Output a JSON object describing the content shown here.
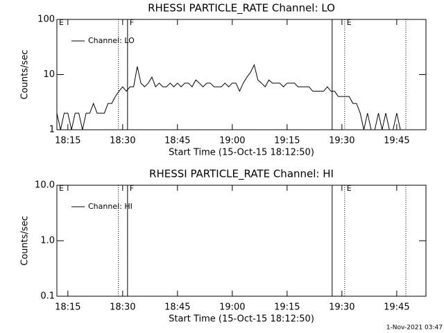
{
  "chart_data": [
    {
      "type": "line",
      "title": "RHESSI PARTICLE_RATE Channel: LO",
      "xlabel": "Start Time (15-Oct-15 18:12:50)",
      "ylabel": "Counts/sec",
      "log_y": true,
      "legend": "upper left",
      "xlim": [
        "18:12",
        "19:53"
      ],
      "xticks": [
        "18:15",
        "18:30",
        "18:45",
        "19:00",
        "19:15",
        "19:30",
        "19:45"
      ],
      "ylim": [
        1,
        100
      ],
      "yticks": [
        1,
        10,
        100
      ],
      "x": [
        "18:12",
        "18:13",
        "18:14",
        "18:15",
        "18:16",
        "18:17",
        "18:18",
        "18:19",
        "18:20",
        "18:21",
        "18:22",
        "18:23",
        "18:24",
        "18:25",
        "18:26",
        "18:27",
        "18:28",
        "18:29",
        "18:30",
        "18:31",
        "18:32",
        "18:33",
        "18:34",
        "18:35",
        "18:36",
        "18:37",
        "18:38",
        "18:39",
        "18:40",
        "18:41",
        "18:42",
        "18:43",
        "18:44",
        "18:45",
        "18:46",
        "18:47",
        "18:48",
        "18:49",
        "18:50",
        "18:51",
        "18:52",
        "18:53",
        "18:54",
        "18:55",
        "18:56",
        "18:57",
        "18:58",
        "18:59",
        "19:00",
        "19:01",
        "19:02",
        "19:03",
        "19:04",
        "19:05",
        "19:06",
        "19:07",
        "19:08",
        "19:09",
        "19:10",
        "19:11",
        "19:12",
        "19:13",
        "19:14",
        "19:15",
        "19:16",
        "19:17",
        "19:18",
        "19:19",
        "19:20",
        "19:21",
        "19:22",
        "19:23",
        "19:24",
        "19:25",
        "19:26",
        "19:27",
        "19:28",
        "19:29",
        "19:30",
        "19:31",
        "19:32",
        "19:33",
        "19:34",
        "19:35",
        "19:36",
        "19:37",
        "19:38",
        "19:39",
        "19:40",
        "19:41",
        "19:42",
        "19:43",
        "19:44",
        "19:45",
        "19:46",
        "19:47",
        "19:48",
        "19:49",
        "19:50"
      ],
      "series": [
        {
          "name": "Channel: LO",
          "color": "#000000",
          "values": [
            2,
            1,
            2,
            2,
            1,
            2,
            2,
            1,
            2,
            2,
            3,
            2,
            2,
            2,
            3,
            3,
            4,
            5,
            6,
            5,
            6,
            6,
            14,
            7,
            6,
            7,
            9,
            6,
            7,
            6,
            6,
            7,
            6,
            7,
            6,
            7,
            7,
            6,
            8,
            7,
            6,
            7,
            7,
            6,
            6,
            6,
            7,
            6,
            7,
            7,
            5,
            7,
            9,
            11,
            15,
            8,
            7,
            6,
            8,
            7,
            7,
            7,
            6,
            7,
            7,
            7,
            6,
            6,
            6,
            6,
            5,
            5,
            5,
            5,
            6,
            5,
            5,
            4,
            4,
            4,
            4,
            3,
            3,
            2,
            1,
            2,
            1,
            1,
            2,
            1,
            2,
            1,
            1,
            2,
            1,
            1,
            1,
            1,
            1
          ]
        }
      ],
      "vlines": [
        {
          "x": "18:28:50",
          "style": "dotted"
        },
        {
          "x": "18:31:20",
          "style": "solid"
        },
        {
          "x": "19:27:20",
          "style": "solid"
        },
        {
          "x": "19:30:45",
          "style": "dotted"
        },
        {
          "x": "19:47:30",
          "style": "dotted"
        }
      ],
      "annotations": [
        {
          "text": "E",
          "x": "18:12"
        },
        {
          "text": "F",
          "x": "18:31:20"
        },
        {
          "text": "E",
          "x": "19:30:45"
        }
      ]
    },
    {
      "type": "line",
      "title": "RHESSI PARTICLE_RATE Channel: HI",
      "xlabel": "Start Time (15-Oct-15 18:12:50)",
      "ylabel": "Counts/sec",
      "log_y": true,
      "legend": "upper left",
      "xlim": [
        "18:12",
        "19:53"
      ],
      "xticks": [
        "18:15",
        "18:30",
        "18:45",
        "19:00",
        "19:15",
        "19:30",
        "19:45"
      ],
      "ylim": [
        0.1,
        10
      ],
      "yticks": [
        0.1,
        {
          "value": 1,
          "label": "1.0"
        },
        {
          "value": 10,
          "label": "10.0"
        }
      ],
      "x": [],
      "series": [
        {
          "name": "Channel: HI",
          "color": "#000000",
          "values": []
        }
      ],
      "vlines": [
        {
          "x": "18:28:50",
          "style": "dotted"
        },
        {
          "x": "18:31:20",
          "style": "solid"
        },
        {
          "x": "19:27:20",
          "style": "solid"
        },
        {
          "x": "19:30:45",
          "style": "dotted"
        },
        {
          "x": "19:47:30",
          "style": "dotted"
        }
      ],
      "annotations": [
        {
          "text": "E",
          "x": "18:12"
        },
        {
          "text": "F",
          "x": "18:31:20"
        },
        {
          "text": "E",
          "x": "19:30:45"
        }
      ]
    }
  ],
  "footer": "1-Nov-2021 03:47"
}
